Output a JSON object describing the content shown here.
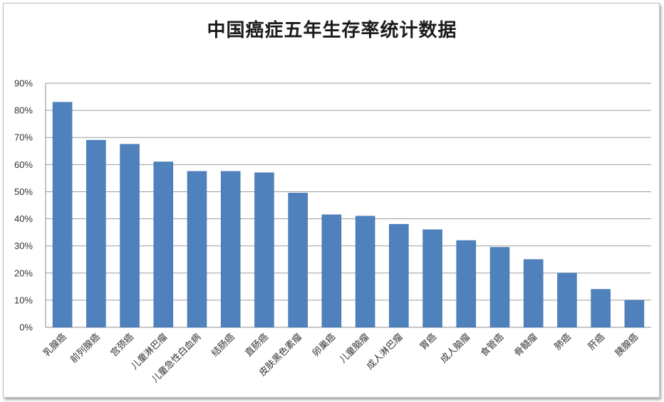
{
  "chart_data": {
    "type": "bar",
    "title": "中国癌症五年生存率统计数据",
    "ylim": [
      0,
      90
    ],
    "yticks": [
      0,
      10,
      20,
      30,
      40,
      50,
      60,
      70,
      80,
      90
    ],
    "ytick_suffix": "%",
    "grid": true,
    "bar_color": "#4f81bd",
    "categories": [
      "乳腺癌",
      "前列腺癌",
      "宫颈癌",
      "儿童淋巴瘤",
      "儿童急性白血病",
      "结肠癌",
      "直肠癌",
      "皮肤黑色素瘤",
      "卵巢癌",
      "儿童脑瘤",
      "成人淋巴瘤",
      "胃癌",
      "成人脑瘤",
      "食管癌",
      "骨髓瘤",
      "肺癌",
      "肝癌",
      "胰腺癌"
    ],
    "values": [
      83,
      69,
      67.5,
      61,
      57.5,
      57.5,
      57,
      49.5,
      41.5,
      41,
      38,
      36,
      32,
      29.5,
      25,
      20,
      14,
      10
    ]
  }
}
